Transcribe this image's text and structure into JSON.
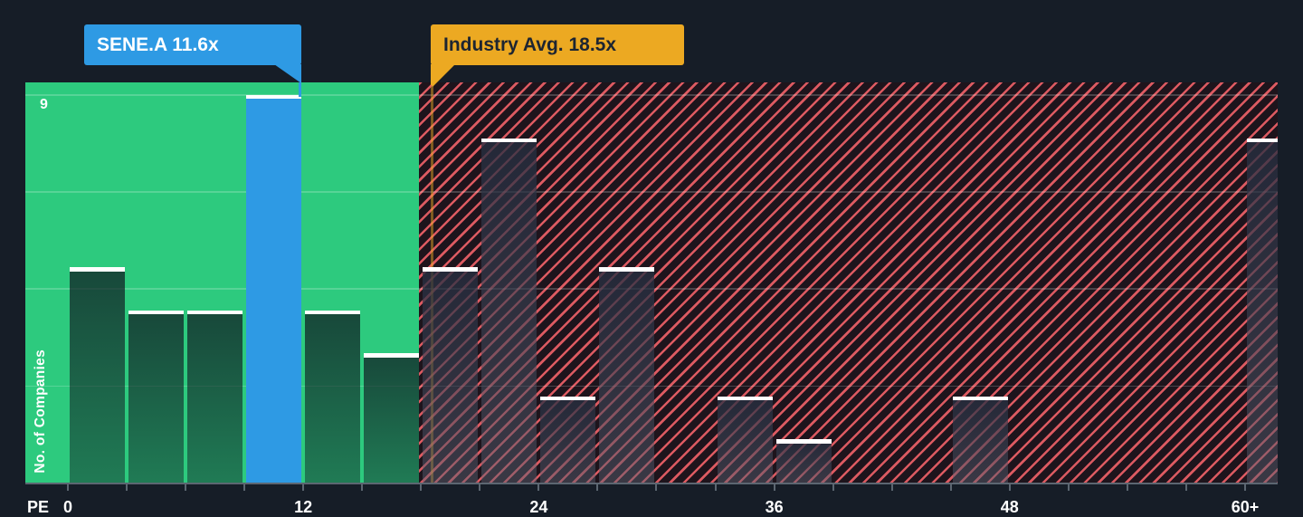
{
  "labels": {
    "pe_axis": "PE",
    "y_top": "9",
    "y_axis_title": "No. of Companies",
    "company_callout": "SENE.A 11.6x",
    "industry_callout": "Industry Avg. 18.5x"
  },
  "chart_data": {
    "type": "bar",
    "subtype": "histogram",
    "title": "",
    "xlabel": "PE",
    "ylabel": "No. of Companies",
    "ylim": [
      0,
      9.3
    ],
    "y_gridlines": [
      2.25,
      4.5,
      6.75,
      9
    ],
    "y_max_gridline_label": "9",
    "grid": true,
    "bin_width": 3,
    "x_axis_ticks": [
      {
        "value": 0,
        "label": "0"
      },
      {
        "value": 12,
        "label": "12"
      },
      {
        "value": 24,
        "label": "24"
      },
      {
        "value": 36,
        "label": "36"
      },
      {
        "value": 48,
        "label": "48"
      },
      {
        "value": 60,
        "label": "60+"
      }
    ],
    "bins": [
      {
        "start": 0,
        "end": 3,
        "count": 5
      },
      {
        "start": 3,
        "end": 6,
        "count": 4
      },
      {
        "start": 6,
        "end": 9,
        "count": 4
      },
      {
        "start": 9,
        "end": 12,
        "count": 9,
        "highlight": "company"
      },
      {
        "start": 12,
        "end": 15,
        "count": 4
      },
      {
        "start": 15,
        "end": 18,
        "count": 3
      },
      {
        "start": 18,
        "end": 21,
        "count": 5
      },
      {
        "start": 21,
        "end": 24,
        "count": 8
      },
      {
        "start": 24,
        "end": 27,
        "count": 2
      },
      {
        "start": 27,
        "end": 30,
        "count": 5
      },
      {
        "start": 30,
        "end": 33,
        "count": 0
      },
      {
        "start": 33,
        "end": 36,
        "count": 2
      },
      {
        "start": 36,
        "end": 39,
        "count": 1
      },
      {
        "start": 39,
        "end": 42,
        "count": 0
      },
      {
        "start": 42,
        "end": 45,
        "count": 0
      },
      {
        "start": 45,
        "end": 48,
        "count": 2
      },
      {
        "start": 48,
        "end": 51,
        "count": 0
      },
      {
        "start": 51,
        "end": 54,
        "count": 0
      },
      {
        "start": 54,
        "end": 57,
        "count": 0
      },
      {
        "start": 57,
        "end": 60,
        "count": 0
      },
      {
        "start": 60,
        "end": 63,
        "count": 8,
        "open_ended": true
      }
    ],
    "company_marker": {
      "label": "SENE.A 11.6x",
      "ticker": "SENE.A",
      "pe": 11.6
    },
    "industry_marker": {
      "label": "Industry Avg. 18.5x",
      "pe": 18.5
    },
    "zones": {
      "green_range": [
        0,
        18
      ],
      "hatched_range": [
        18,
        63
      ]
    },
    "colors": {
      "background": "#161d27",
      "zone_green": "#2dca7e",
      "company_blue": "#2e9ae4",
      "industry_yellow": "#eca922",
      "hatch_red": "#dc5a61",
      "hatch_background": "#1e141c",
      "bar_cap": "#ffffff",
      "axis": "#5c6671"
    }
  }
}
